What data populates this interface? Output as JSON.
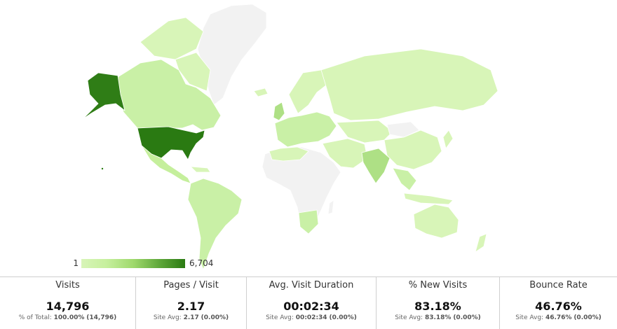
{
  "map": {
    "legend_min": "1",
    "legend_max": "6,704",
    "colors": {
      "no_data": "#f2f2f2",
      "border": "#d0d0d0",
      "level_low": "#d8f5b8",
      "level_mid": "#c5ef9c",
      "level_high": "#aee085",
      "level_max": "#2a7a12"
    }
  },
  "metrics": [
    {
      "name": "Visits",
      "value": "14,796",
      "sub_label": "% of Total:",
      "sub_main": "100.00%",
      "sub_extra": "(14,796)"
    },
    {
      "name": "Pages / Visit",
      "value": "2.17",
      "sub_label": "Site Avg:",
      "sub_main": "2.17",
      "sub_extra": "(0.00%)"
    },
    {
      "name": "Avg. Visit Duration",
      "value": "00:02:34",
      "sub_label": "Site Avg:",
      "sub_main": "00:02:34",
      "sub_extra": "(0.00%)"
    },
    {
      "name": "% New Visits",
      "value": "83.18%",
      "sub_label": "Site Avg:",
      "sub_main": "83.18%",
      "sub_extra": "(0.00%)"
    },
    {
      "name": "Bounce Rate",
      "value": "46.76%",
      "sub_label": "Site Avg:",
      "sub_main": "46.76%",
      "sub_extra": "(0.00%)"
    }
  ]
}
